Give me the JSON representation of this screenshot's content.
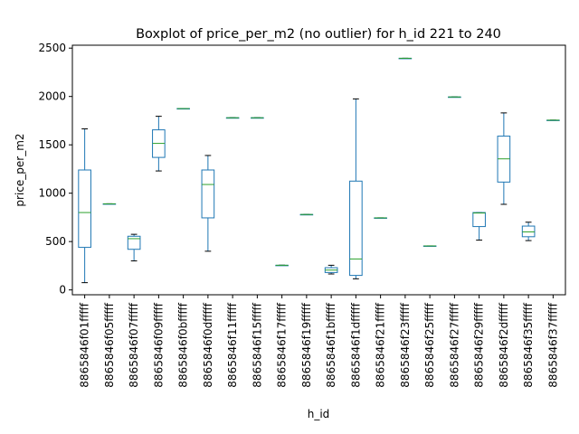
{
  "chart_data": {
    "type": "boxplot",
    "title": "Boxplot of price_per_m2 (no outlier) for h_id 221 to 240",
    "xlabel": "h_id",
    "ylabel": "price_per_m2",
    "ylim": [
      -50,
      2530
    ],
    "yticks": [
      0,
      500,
      1000,
      1500,
      2000,
      2500
    ],
    "grid": false,
    "categories": [
      "8865846f01fffff",
      "8865846f05fffff",
      "8865846f07fffff",
      "8865846f09fffff",
      "8865846f0bfffff",
      "8865846f0dfffff",
      "8865846f11fffff",
      "8865846f15fffff",
      "8865846f17fffff",
      "8865846f19fffff",
      "8865846f1bfffff",
      "8865846f1dfffff",
      "8865846f21fffff",
      "8865846f23fffff",
      "8865846f25fffff",
      "8865846f27fffff",
      "8865846f29fffff",
      "8865846f2dfffff",
      "8865846f35fffff",
      "8865846f37fffff"
    ],
    "boxes": [
      {
        "min": 75,
        "q1": 440,
        "median": 800,
        "q3": 1240,
        "max": 1665
      },
      {
        "min": 890,
        "q1": 890,
        "median": 890,
        "q3": 890,
        "max": 890
      },
      {
        "min": 300,
        "q1": 420,
        "median": 530,
        "q3": 555,
        "max": 575
      },
      {
        "min": 1230,
        "q1": 1370,
        "median": 1515,
        "q3": 1655,
        "max": 1795
      },
      {
        "min": 1875,
        "q1": 1875,
        "median": 1875,
        "q3": 1875,
        "max": 1875
      },
      {
        "min": 400,
        "q1": 745,
        "median": 1090,
        "q3": 1240,
        "max": 1390
      },
      {
        "min": 1780,
        "q1": 1780,
        "median": 1780,
        "q3": 1780,
        "max": 1780
      },
      {
        "min": 1780,
        "q1": 1780,
        "median": 1780,
        "q3": 1780,
        "max": 1780
      },
      {
        "min": 255,
        "q1": 255,
        "median": 255,
        "q3": 255,
        "max": 255
      },
      {
        "min": 780,
        "q1": 780,
        "median": 780,
        "q3": 780,
        "max": 780
      },
      {
        "min": 165,
        "q1": 180,
        "median": 205,
        "q3": 230,
        "max": 255
      },
      {
        "min": 115,
        "q1": 150,
        "median": 320,
        "q3": 1125,
        "max": 1975
      },
      {
        "min": 745,
        "q1": 745,
        "median": 745,
        "q3": 745,
        "max": 745
      },
      {
        "min": 2395,
        "q1": 2395,
        "median": 2395,
        "q3": 2395,
        "max": 2395
      },
      {
        "min": 455,
        "q1": 455,
        "median": 455,
        "q3": 455,
        "max": 455
      },
      {
        "min": 1995,
        "q1": 1995,
        "median": 1995,
        "q3": 1995,
        "max": 1995
      },
      {
        "min": 515,
        "q1": 655,
        "median": 795,
        "q3": 800,
        "max": 800
      },
      {
        "min": 885,
        "q1": 1115,
        "median": 1355,
        "q3": 1590,
        "max": 1830
      },
      {
        "min": 510,
        "q1": 550,
        "median": 600,
        "q3": 660,
        "max": 700
      },
      {
        "min": 1755,
        "q1": 1755,
        "median": 1755,
        "q3": 1755,
        "max": 1755
      }
    ],
    "colors": {
      "box": "#1f77b4",
      "median": "#2ca02c",
      "cap": "#000000"
    }
  }
}
